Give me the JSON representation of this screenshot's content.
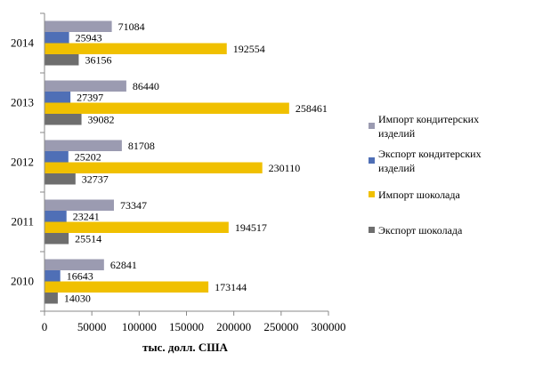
{
  "chart_data": {
    "type": "bar",
    "orientation": "horizontal",
    "categories": [
      "2010",
      "2011",
      "2012",
      "2013",
      "2014"
    ],
    "series": [
      {
        "name": "Импорт кондитерских изделий",
        "color": "#9b9bb1",
        "values": [
          62841,
          73347,
          81708,
          86440,
          71084
        ]
      },
      {
        "name": "Экспорт кондитерских изделий",
        "color": "#4f6fb6",
        "values": [
          16643,
          23241,
          25202,
          27397,
          25943
        ]
      },
      {
        "name": "Импорт шоколада",
        "color": "#f0c000",
        "values": [
          173144,
          194517,
          230110,
          258461,
          192554
        ]
      },
      {
        "name": "Экспорт шоколада",
        "color": "#6e6e6e",
        "values": [
          14030,
          25514,
          32737,
          39082,
          36156
        ]
      }
    ],
    "xlabel": "тыс. долл. США",
    "ylabel": "",
    "xlim": [
      0,
      300000
    ],
    "xticks": [
      "0",
      "50000",
      "100000",
      "150000",
      "200000",
      "250000",
      "300000"
    ],
    "grid": false,
    "legend_position": "right",
    "data_labels": true
  }
}
